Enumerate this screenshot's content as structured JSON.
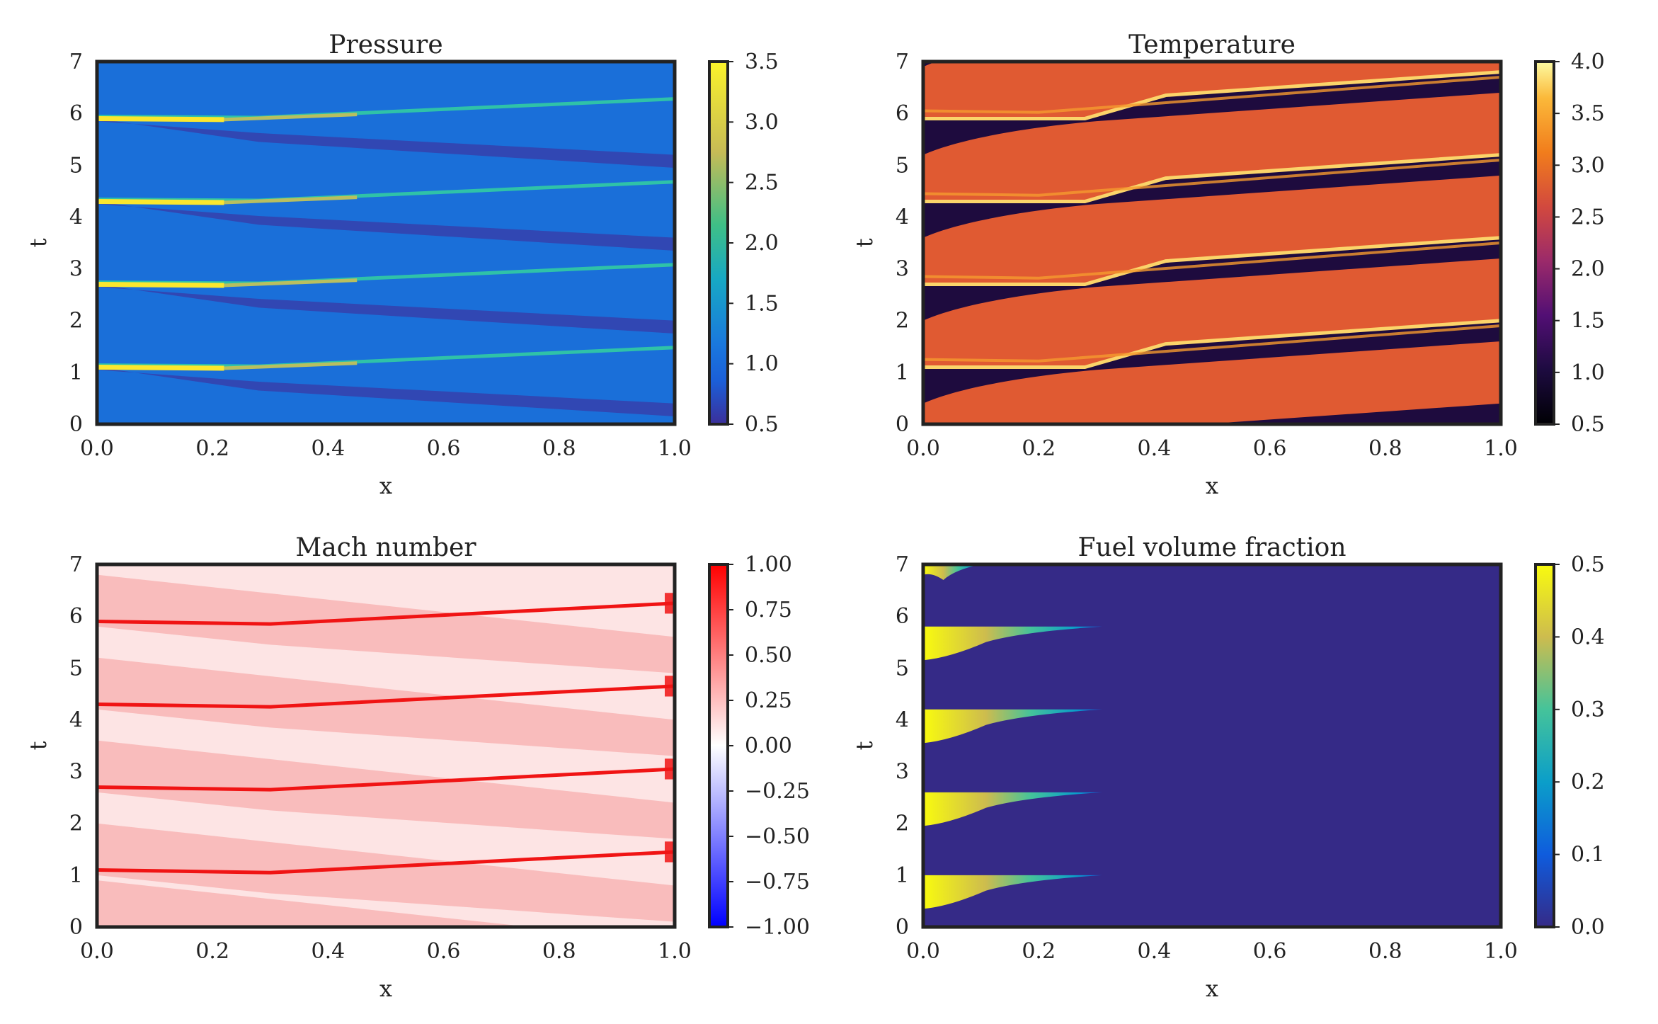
{
  "chart_data": [
    {
      "type": "heatmap",
      "title": "Pressure",
      "xlabel": "x",
      "ylabel": "t",
      "xlim": [
        0,
        1
      ],
      "ylim": [
        0,
        7
      ],
      "x_ticks": [
        "0.0",
        "0.2",
        "0.4",
        "0.6",
        "0.8",
        "1.0"
      ],
      "y_ticks": [
        "0",
        "1",
        "2",
        "3",
        "4",
        "5",
        "6",
        "7"
      ],
      "colorbar": {
        "min": 0.5,
        "max": 3.5,
        "ticks": [
          "0.5",
          "1.0",
          "1.5",
          "2.0",
          "2.5",
          "3.0",
          "3.5"
        ]
      },
      "colormap": "blue-cyan-yellow",
      "background_value": 1.0,
      "pulse_times": [
        1.1,
        2.7,
        4.3,
        5.9
      ],
      "description_values": {
        "peak": 3.5,
        "wave_trough": 0.5
      }
    },
    {
      "type": "heatmap",
      "title": "Temperature",
      "xlabel": "x",
      "ylabel": "t",
      "xlim": [
        0,
        1
      ],
      "ylim": [
        0,
        7
      ],
      "x_ticks": [
        "0.0",
        "0.2",
        "0.4",
        "0.6",
        "0.8",
        "1.0"
      ],
      "y_ticks": [
        "0",
        "1",
        "2",
        "3",
        "4",
        "5",
        "6",
        "7"
      ],
      "colorbar": {
        "min": 0.5,
        "max": 4.0,
        "ticks": [
          "0.5",
          "1.0",
          "1.5",
          "2.0",
          "2.5",
          "3.0",
          "3.5",
          "4.0"
        ]
      },
      "colormap": "black-purple-orange-yellow",
      "burned_value": 2.7,
      "unburned_value": 0.8,
      "pulse_times": [
        1.1,
        2.7,
        4.3,
        5.9
      ]
    },
    {
      "type": "heatmap",
      "title": "Mach number",
      "xlabel": "x",
      "ylabel": "t",
      "xlim": [
        0,
        1
      ],
      "ylim": [
        0,
        7
      ],
      "x_ticks": [
        "0.0",
        "0.2",
        "0.4",
        "0.6",
        "0.8",
        "1.0"
      ],
      "y_ticks": [
        "0",
        "1",
        "2",
        "3",
        "4",
        "5",
        "6",
        "7"
      ],
      "colorbar": {
        "min": -1.0,
        "max": 1.0,
        "ticks": [
          "−1.00",
          "−0.75",
          "−0.50",
          "−0.25",
          "0.00",
          "0.25",
          "0.50",
          "0.75",
          "1.00"
        ]
      },
      "colormap": "blue-white-red",
      "pulse_times": [
        1.1,
        2.7,
        4.3,
        5.9
      ]
    },
    {
      "type": "heatmap",
      "title": "Fuel volume fraction",
      "xlabel": "x",
      "ylabel": "t",
      "xlim": [
        0,
        1
      ],
      "ylim": [
        0,
        7
      ],
      "x_ticks": [
        "0.0",
        "0.2",
        "0.4",
        "0.6",
        "0.8",
        "1.0"
      ],
      "y_ticks": [
        "0",
        "1",
        "2",
        "3",
        "4",
        "5",
        "6",
        "7"
      ],
      "colorbar": {
        "min": 0.0,
        "max": 0.5,
        "ticks": [
          "0.0",
          "0.1",
          "0.2",
          "0.3",
          "0.4",
          "0.5"
        ]
      },
      "colormap": "purple-blue-green-yellow",
      "background_value": 0.0,
      "fuel_wedges": [
        {
          "t_top": 1.0,
          "t_bottom": 0.35,
          "x_tip": 0.31
        },
        {
          "t_top": 2.6,
          "t_bottom": 1.95,
          "x_tip": 0.31
        },
        {
          "t_top": 4.2,
          "t_bottom": 3.55,
          "x_tip": 0.31
        },
        {
          "t_top": 5.8,
          "t_bottom": 5.15,
          "x_tip": 0.31
        },
        {
          "t_top": 7.0,
          "t_bottom": 6.8,
          "x_tip": 0.1
        }
      ]
    }
  ]
}
